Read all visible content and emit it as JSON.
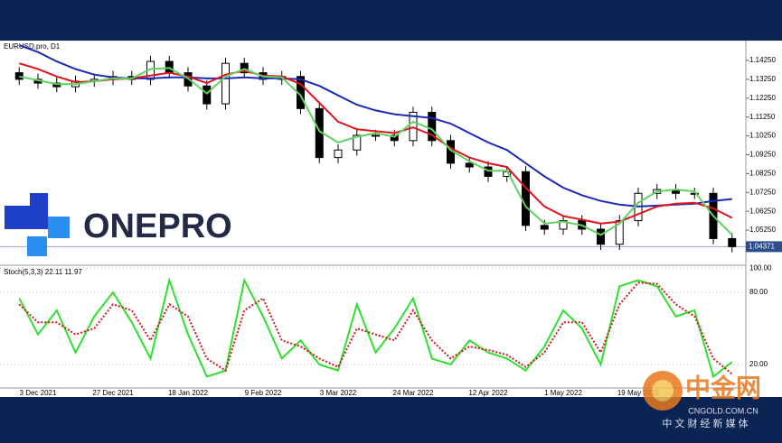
{
  "chart_data": [
    {
      "type": "candlestick",
      "title": "EURUSD.pro, D1",
      "categories": [
        null,
        "3 Dec 2021",
        null,
        null,
        null,
        "27 Dec 2021",
        null,
        null,
        null,
        "18 Jan 2022",
        null,
        null,
        null,
        "9 Feb 2022",
        null,
        null,
        null,
        "3 Mar 2022",
        null,
        null,
        null,
        "24 Mar 2022",
        null,
        null,
        null,
        "12 Apr 2022",
        null,
        null,
        null,
        "1 May 2022",
        null,
        null,
        null,
        "19 May 2022",
        null,
        null,
        null,
        null,
        null
      ],
      "open": [
        1.136,
        1.1325,
        1.1305,
        1.1286,
        1.1315,
        1.1325,
        1.134,
        1.1325,
        1.142,
        1.136,
        1.129,
        1.1195,
        1.141,
        1.136,
        1.1325,
        1.134,
        1.117,
        1.091,
        1.095,
        1.1028,
        1.1028,
        1.1,
        1.115,
        1.1,
        1.088,
        1.086,
        1.081,
        1.0835,
        1.055,
        1.053,
        1.0575,
        1.053,
        1.045,
        1.0575,
        1.072,
        1.074,
        1.072,
        1.072,
        1.048
      ],
      "high": [
        1.139,
        1.1355,
        1.1335,
        1.1345,
        1.1355,
        1.137,
        1.137,
        1.145,
        1.145,
        1.139,
        1.132,
        1.144,
        1.144,
        1.139,
        1.137,
        1.137,
        1.12,
        1.098,
        1.1058,
        1.1058,
        1.1058,
        1.118,
        1.118,
        1.103,
        1.091,
        1.089,
        1.0865,
        1.0865,
        1.058,
        1.0605,
        1.0605,
        1.056,
        1.0605,
        1.075,
        1.077,
        1.077,
        1.075,
        1.075,
        1.051
      ],
      "low": [
        1.1295,
        1.1275,
        1.1256,
        1.1256,
        1.1285,
        1.1295,
        1.1295,
        1.1295,
        1.133,
        1.126,
        1.1165,
        1.1165,
        1.133,
        1.1295,
        1.1295,
        1.114,
        1.088,
        1.088,
        1.092,
        1.0998,
        1.097,
        1.097,
        1.097,
        1.085,
        1.083,
        1.078,
        1.078,
        1.052,
        1.05,
        1.05,
        1.05,
        1.042,
        1.042,
        1.0545,
        1.069,
        1.069,
        1.069,
        1.045,
        1.0407
      ],
      "close": [
        1.1325,
        1.1305,
        1.1286,
        1.1315,
        1.1325,
        1.134,
        1.1325,
        1.142,
        1.136,
        1.129,
        1.1195,
        1.141,
        1.136,
        1.1325,
        1.134,
        1.117,
        1.091,
        1.095,
        1.1028,
        1.1028,
        1.1,
        1.115,
        1.1,
        1.088,
        1.086,
        1.081,
        1.0835,
        1.055,
        1.053,
        1.0575,
        1.053,
        1.045,
        1.0575,
        1.072,
        1.074,
        1.072,
        1.072,
        1.048,
        1.0437
      ],
      "series": [
        {
          "color": "#1b2bb5",
          "values": [
            1.1506,
            1.147,
            1.142,
            1.138,
            1.135,
            1.1335,
            1.133,
            1.133,
            1.1335,
            1.1335,
            1.133,
            1.133,
            1.1335,
            1.133,
            1.133,
            1.1325,
            1.129,
            1.124,
            1.119,
            1.116,
            1.114,
            1.113,
            1.112,
            1.109,
            1.104,
            1.099,
            1.095,
            1.088,
            1.081,
            1.075,
            1.071,
            1.068,
            1.066,
            1.065,
            1.0655,
            1.066,
            1.0665,
            1.068,
            1.069
          ]
        },
        {
          "color": "#e0141e",
          "values": [
            1.141,
            1.138,
            1.134,
            1.131,
            1.1315,
            1.1325,
            1.133,
            1.1345,
            1.136,
            1.134,
            1.1305,
            1.135,
            1.137,
            1.1345,
            1.134,
            1.13,
            1.12,
            1.11,
            1.106,
            1.105,
            1.104,
            1.107,
            1.103,
            1.096,
            1.091,
            1.088,
            1.086,
            1.075,
            1.065,
            1.06,
            1.058,
            1.056,
            1.057,
            1.061,
            1.065,
            1.0665,
            1.067,
            1.064,
            1.059
          ]
        },
        {
          "color": "#5fd35f",
          "values": [
            1.134,
            1.132,
            1.13,
            1.13,
            1.1315,
            1.133,
            1.133,
            1.138,
            1.1385,
            1.133,
            1.125,
            1.134,
            1.138,
            1.134,
            1.1335,
            1.124,
            1.105,
            1.099,
            1.102,
            1.104,
            1.102,
            1.11,
            1.106,
            1.095,
            1.089,
            1.084,
            1.084,
            1.065,
            1.056,
            1.057,
            1.055,
            1.05,
            1.056,
            1.067,
            1.073,
            1.074,
            1.073,
            1.06,
            1.05
          ]
        }
      ],
      "current_price": {
        "value": 1.04371,
        "label": "1.04371"
      },
      "ylim": [
        1.0348,
        1.1521
      ],
      "yticks": [
        {
          "value": 1.1425,
          "label": "1.14250"
        },
        {
          "value": 1.1325,
          "label": "1.13250"
        },
        {
          "value": 1.1225,
          "label": "1.12250"
        },
        {
          "value": 1.1125,
          "label": "1.11250"
        },
        {
          "value": 1.1025,
          "label": "1.10250"
        },
        {
          "value": 1.0925,
          "label": "1.09250"
        },
        {
          "value": 1.0825,
          "label": "1.08250"
        },
        {
          "value": 1.0725,
          "label": "1.07250"
        },
        {
          "value": 1.0625,
          "label": "1.06250"
        },
        {
          "value": 1.0525,
          "label": "1.05250"
        }
      ],
      "grid": false
    },
    {
      "type": "line",
      "title": "Stoch(5,3,3) 22.11 11.97",
      "series": [
        {
          "color": "#2ee02e",
          "values": [
            75,
            45,
            65,
            30,
            60,
            80,
            55,
            25,
            90,
            45,
            10,
            15,
            90,
            60,
            25,
            40,
            20,
            15,
            70,
            30,
            50,
            75,
            25,
            20,
            40,
            30,
            25,
            15,
            35,
            65,
            50,
            20,
            85,
            90,
            85,
            60,
            65,
            10,
            22.11
          ]
        },
        {
          "color": "#d4141e",
          "dashed": true,
          "values": [
            70,
            55,
            55,
            45,
            50,
            70,
            65,
            40,
            70,
            60,
            25,
            15,
            65,
            75,
            40,
            35,
            25,
            18,
            50,
            45,
            40,
            65,
            40,
            25,
            35,
            32,
            28,
            18,
            30,
            55,
            55,
            30,
            70,
            88,
            87,
            70,
            60,
            25,
            11.97
          ]
        }
      ],
      "ylim": [
        0,
        100
      ],
      "yticks": [
        {
          "value": 100,
          "label": "100.00"
        },
        {
          "value": 80,
          "label": "80.00"
        },
        {
          "value": 20,
          "label": "20.00"
        }
      ],
      "grid": true
    }
  ],
  "watermarks": {
    "brand": "ONEPRO",
    "logo_cn": "中金网",
    "site": "CNGOLD.COM.CN",
    "slogan": "中 文 财 经 新 媒 体"
  }
}
